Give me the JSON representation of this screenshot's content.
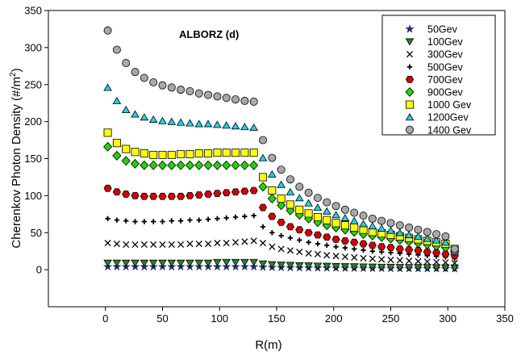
{
  "chart_data": {
    "type": "scatter",
    "title": "ALBORZ (d)",
    "xlabel": "R(m)",
    "ylabel": "Cherenkov  Photon Density (#/m",
    "ylabel_sup": "2",
    "ylabel_close": ")",
    "xlim": [
      -50,
      350
    ],
    "ylim": [
      -50,
      350
    ],
    "xticks": [
      0,
      50,
      100,
      150,
      200,
      250,
      300,
      350
    ],
    "yticks": [
      0,
      50,
      100,
      150,
      200,
      250,
      300,
      350
    ],
    "grid": false,
    "legend_position": "top-right",
    "x": [
      2,
      10,
      18,
      26,
      34,
      42,
      50,
      58,
      66,
      74,
      82,
      90,
      98,
      106,
      114,
      122,
      130,
      138,
      146,
      154,
      162,
      170,
      178,
      186,
      194,
      202,
      210,
      218,
      226,
      234,
      242,
      250,
      258,
      266,
      274,
      282,
      290,
      298,
      306
    ],
    "series": [
      {
        "name": "50Gev",
        "marker": "star",
        "color": "#1a2a8a",
        "values": [
          4,
          4,
          4,
          4,
          4,
          4,
          4,
          4,
          4,
          4,
          4,
          4,
          4,
          4,
          4,
          4,
          4,
          3.5,
          3.2,
          3,
          2.8,
          2.6,
          2.5,
          2.4,
          2.3,
          2.2,
          2.1,
          2,
          1.9,
          1.8,
          1.8,
          1.7,
          1.6,
          1.6,
          1.5,
          1.4,
          1.4,
          1.3,
          1.2
        ]
      },
      {
        "name": "100Gev",
        "marker": "triangle-down",
        "color": "#2e7d32",
        "values": [
          9,
          9,
          9,
          9,
          9,
          9,
          9,
          9,
          9,
          9,
          9,
          9,
          10,
          10,
          10,
          10,
          10,
          8,
          7,
          6.5,
          6,
          5.6,
          5.3,
          5,
          4.8,
          4.5,
          4.3,
          4.1,
          3.9,
          3.7,
          3.5,
          3.4,
          3.2,
          3.1,
          3,
          2.9,
          2.8,
          2.7,
          2.5
        ]
      },
      {
        "name": "300Gev",
        "marker": "x",
        "color": "#000000",
        "values": [
          36,
          35,
          34,
          34,
          34,
          34,
          34,
          34,
          34,
          35,
          35,
          35,
          36,
          36,
          37,
          38,
          39,
          36,
          31,
          28,
          26,
          24,
          22,
          21,
          19.5,
          18.5,
          17.5,
          16.5,
          15.5,
          14.8,
          14,
          13.3,
          12.6,
          12,
          11.4,
          10.8,
          10.3,
          9.8,
          9
        ]
      },
      {
        "name": "500Gev",
        "marker": "plus",
        "color": "#000000",
        "values": [
          69,
          67,
          66,
          65,
          65,
          65,
          65,
          66,
          66,
          67,
          67,
          68,
          69,
          70,
          71,
          72,
          73,
          58,
          50,
          46,
          43,
          40,
          37,
          35,
          33,
          31,
          29.5,
          28,
          26.5,
          25,
          24,
          23,
          22,
          21,
          20,
          19,
          18,
          17,
          15
        ]
      },
      {
        "name": "700Gev",
        "marker": "hexagon",
        "color": "#d50000",
        "values": [
          110,
          105,
          102,
          100,
          99,
          99,
          99,
          99,
          99,
          100,
          101,
          102,
          103,
          104,
          105,
          106,
          107,
          84,
          72,
          64,
          58,
          54,
          50,
          47,
          44,
          41,
          39,
          37,
          35,
          33,
          31,
          30,
          28,
          27,
          26,
          24,
          23,
          21,
          19
        ]
      },
      {
        "name": "900Gev",
        "marker": "diamond",
        "color": "#22d400",
        "values": [
          166,
          154,
          147,
          143,
          141,
          141,
          141,
          141,
          141,
          141,
          141,
          141,
          141,
          141,
          141,
          141,
          141,
          112,
          96,
          87,
          80,
          74,
          69,
          64,
          60,
          57,
          54,
          51,
          48,
          46,
          44,
          42,
          40,
          38,
          36,
          34,
          32,
          30,
          25
        ]
      },
      {
        "name": "1000 Gev",
        "marker": "square",
        "color": "#ffff00",
        "values": [
          185,
          171,
          163,
          159,
          157,
          155,
          155,
          155,
          156,
          156,
          157,
          157,
          158,
          158,
          158,
          158,
          158,
          125,
          107,
          96,
          88,
          81,
          76,
          71,
          67,
          63,
          60,
          57,
          54,
          51,
          49,
          47,
          45,
          43,
          41,
          39,
          37,
          35,
          28
        ]
      },
      {
        "name": "1200Gev",
        "marker": "triangle-up",
        "color": "#22d0e6",
        "values": [
          246,
          228,
          216,
          210,
          206,
          203,
          201,
          200,
          199,
          198,
          197,
          197,
          196,
          195,
          194,
          193,
          192,
          151,
          129,
          115,
          105,
          97,
          90,
          84,
          79,
          74,
          70,
          66,
          62,
          59,
          56,
          53,
          50,
          47,
          45,
          42,
          40,
          37,
          25
        ]
      },
      {
        "name": "1400 Gev",
        "marker": "circle",
        "color": "#a8a8a8",
        "values": [
          323,
          297,
          279,
          267,
          259,
          253,
          249,
          246,
          243,
          241,
          238,
          236,
          234,
          232,
          230,
          228,
          227,
          175,
          151,
          135,
          122,
          112,
          104,
          97,
          91,
          86,
          81,
          77,
          73,
          69,
          66,
          63,
          60,
          57,
          54,
          51,
          48,
          45,
          28
        ]
      }
    ]
  }
}
